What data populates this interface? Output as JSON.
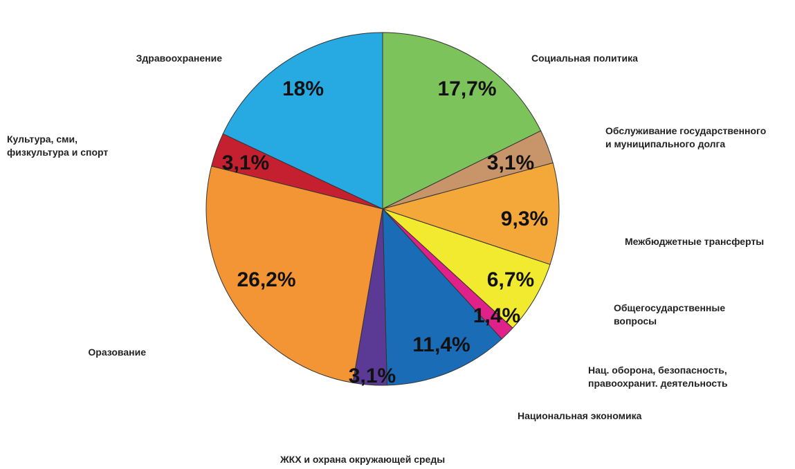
{
  "chart_data": {
    "type": "pie",
    "categories": [
      "Социальная политика",
      "Обслуживание государственного\nи муниципального долга",
      "Межбюджетные трансферты",
      "Общегосударственные\nвопросы",
      "Нац. оборона, безопасность,\nправоохранит. деятельность",
      "Национальная экономика",
      "ЖКХ и охрана окружающей среды",
      "Оразование",
      "Культура, сми,\nфизкультура и спорт",
      "Здравоохранение"
    ],
    "values": [
      17.7,
      3.1,
      9.3,
      6.7,
      1.4,
      11.4,
      3.1,
      26.2,
      3.1,
      18
    ],
    "value_labels": [
      "17,7%",
      "3,1%",
      "9,3%",
      "6,7%",
      "1,4%",
      "11,4%",
      "3,1%",
      "26,2%",
      "3,1%",
      "18%"
    ],
    "colors": [
      "#7dc35b",
      "#c8956a",
      "#f5a83a",
      "#f2ea2e",
      "#e0218a",
      "#1a6cb7",
      "#5b3a96",
      "#f39534",
      "#c4202f",
      "#27a9e1"
    ]
  }
}
